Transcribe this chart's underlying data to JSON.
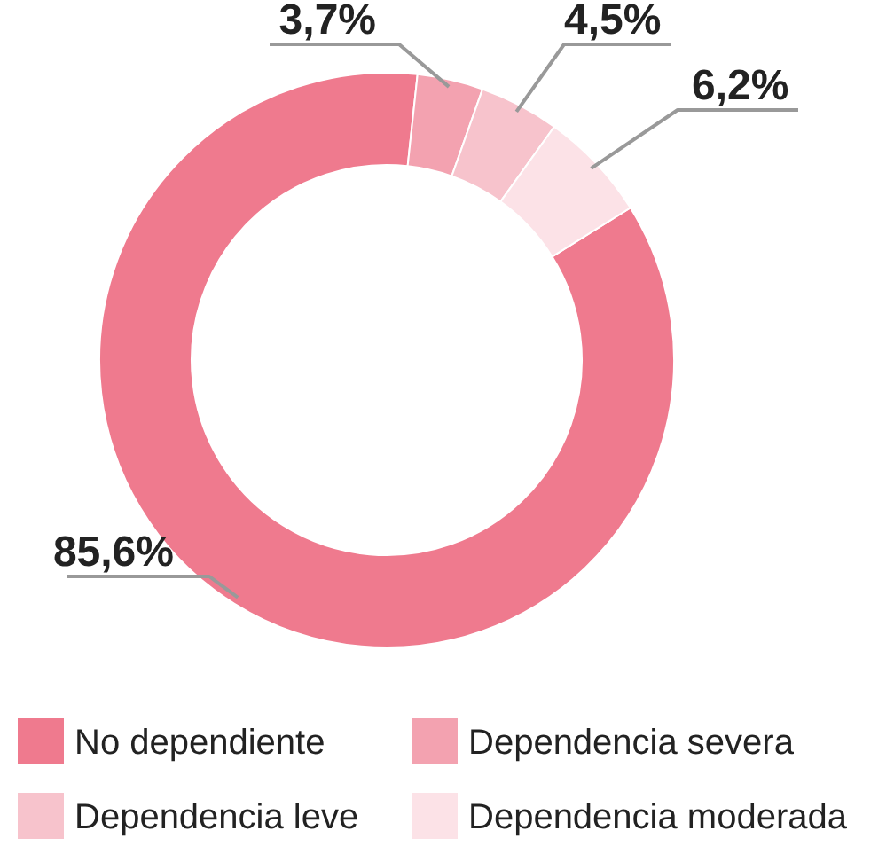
{
  "chart_data": {
    "type": "donut",
    "categories": [
      "No dependiente",
      "Dependencia severa",
      "Dependencia leve",
      "Dependencia moderada"
    ],
    "values": [
      85.6,
      3.7,
      4.5,
      6.2
    ],
    "colors": [
      "#ef7a8e",
      "#f3a2b0",
      "#f7c3cc",
      "#fce2e7"
    ],
    "value_labels": [
      "85,6%",
      "3,7%",
      "4,5%",
      "6,2%"
    ],
    "legend": "bottom"
  }
}
